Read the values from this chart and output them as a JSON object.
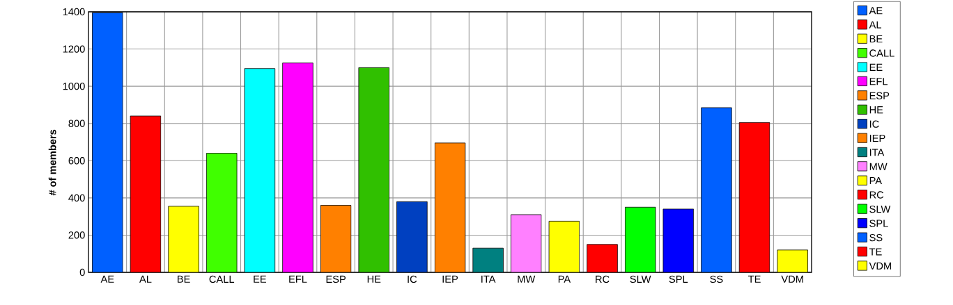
{
  "chart_data": {
    "type": "bar",
    "ylabel": "# of members",
    "categories": [
      "AE",
      "AL",
      "BE",
      "CALL",
      "EE",
      "EFL",
      "ESP",
      "HE",
      "IC",
      "IEP",
      "ITA",
      "MW",
      "PA",
      "RC",
      "SLW",
      "SPL",
      "SS",
      "TE",
      "VDM"
    ],
    "series": [
      {
        "name": "AE",
        "color": "#0060ff",
        "values": [
          1395,
          null,
          null,
          null,
          null,
          null,
          null,
          null,
          null,
          null,
          null,
          null,
          null,
          null,
          null,
          null,
          null,
          null,
          null
        ]
      },
      {
        "name": "AL",
        "color": "#ff0000",
        "values": [
          null,
          840,
          null,
          null,
          null,
          null,
          null,
          null,
          null,
          null,
          null,
          null,
          null,
          null,
          null,
          null,
          null,
          null,
          null
        ]
      },
      {
        "name": "BE",
        "color": "#ffff00",
        "values": [
          null,
          null,
          355,
          null,
          null,
          null,
          null,
          null,
          null,
          null,
          null,
          null,
          null,
          null,
          null,
          null,
          null,
          null,
          null
        ]
      },
      {
        "name": "CALL",
        "color": "#40ff00",
        "values": [
          null,
          null,
          null,
          640,
          null,
          null,
          null,
          null,
          null,
          null,
          null,
          null,
          null,
          null,
          null,
          null,
          null,
          null,
          null
        ]
      },
      {
        "name": "EE",
        "color": "#00ffff",
        "values": [
          null,
          null,
          null,
          null,
          1095,
          null,
          null,
          null,
          null,
          null,
          null,
          null,
          null,
          null,
          null,
          null,
          null,
          null,
          null
        ]
      },
      {
        "name": "EFL",
        "color": "#ff00ff",
        "values": [
          null,
          null,
          null,
          null,
          null,
          1125,
          null,
          null,
          null,
          null,
          null,
          null,
          null,
          null,
          null,
          null,
          null,
          null,
          null
        ]
      },
      {
        "name": "ESP",
        "color": "#ff8000",
        "values": [
          null,
          null,
          null,
          null,
          null,
          null,
          360,
          null,
          null,
          null,
          null,
          null,
          null,
          null,
          null,
          null,
          null,
          null,
          null
        ]
      },
      {
        "name": "HE",
        "color": "#30c000",
        "values": [
          null,
          null,
          null,
          null,
          null,
          null,
          null,
          1100,
          null,
          null,
          null,
          null,
          null,
          null,
          null,
          null,
          null,
          null,
          null
        ]
      },
      {
        "name": "IC",
        "color": "#0040c0",
        "values": [
          null,
          null,
          null,
          null,
          null,
          null,
          null,
          null,
          380,
          null,
          null,
          null,
          null,
          null,
          null,
          null,
          null,
          null,
          null
        ]
      },
      {
        "name": "IEP",
        "color": "#ff8000",
        "values": [
          null,
          null,
          null,
          null,
          null,
          null,
          null,
          null,
          null,
          695,
          null,
          null,
          null,
          null,
          null,
          null,
          null,
          null,
          null
        ]
      },
      {
        "name": "ITA",
        "color": "#008080",
        "values": [
          null,
          null,
          null,
          null,
          null,
          null,
          null,
          null,
          null,
          null,
          130,
          null,
          null,
          null,
          null,
          null,
          null,
          null,
          null
        ]
      },
      {
        "name": "MW",
        "color": "#ff80ff",
        "values": [
          null,
          null,
          null,
          null,
          null,
          null,
          null,
          null,
          null,
          null,
          null,
          310,
          null,
          null,
          null,
          null,
          null,
          null,
          null
        ]
      },
      {
        "name": "PA",
        "color": "#ffff00",
        "values": [
          null,
          null,
          null,
          null,
          null,
          null,
          null,
          null,
          null,
          null,
          null,
          null,
          275,
          null,
          null,
          null,
          null,
          null,
          null
        ]
      },
      {
        "name": "RC",
        "color": "#ff0000",
        "values": [
          null,
          null,
          null,
          null,
          null,
          null,
          null,
          null,
          null,
          null,
          null,
          null,
          null,
          150,
          null,
          null,
          null,
          null,
          null
        ]
      },
      {
        "name": "SLW",
        "color": "#00ff00",
        "values": [
          null,
          null,
          null,
          null,
          null,
          null,
          null,
          null,
          null,
          null,
          null,
          null,
          null,
          null,
          350,
          null,
          null,
          null,
          null
        ]
      },
      {
        "name": "SPL",
        "color": "#0000ff",
        "values": [
          null,
          null,
          null,
          null,
          null,
          null,
          null,
          null,
          null,
          null,
          null,
          null,
          null,
          null,
          null,
          340,
          null,
          null,
          null
        ]
      },
      {
        "name": "SS",
        "color": "#0060ff",
        "values": [
          null,
          null,
          null,
          null,
          null,
          null,
          null,
          null,
          null,
          null,
          null,
          null,
          null,
          null,
          null,
          null,
          885,
          null,
          null
        ]
      },
      {
        "name": "TE",
        "color": "#ff0000",
        "values": [
          null,
          null,
          null,
          null,
          null,
          null,
          null,
          null,
          null,
          null,
          null,
          null,
          null,
          null,
          null,
          null,
          null,
          805,
          null
        ]
      },
      {
        "name": "VDM",
        "color": "#ffff00",
        "values": [
          null,
          null,
          null,
          null,
          null,
          null,
          null,
          null,
          null,
          null,
          null,
          null,
          null,
          null,
          null,
          null,
          null,
          null,
          120
        ]
      }
    ],
    "ylim": [
      0,
      1400
    ],
    "yticks": [
      0,
      200,
      400,
      600,
      800,
      1000,
      1200,
      1400
    ],
    "grid": true,
    "legend": "right"
  }
}
